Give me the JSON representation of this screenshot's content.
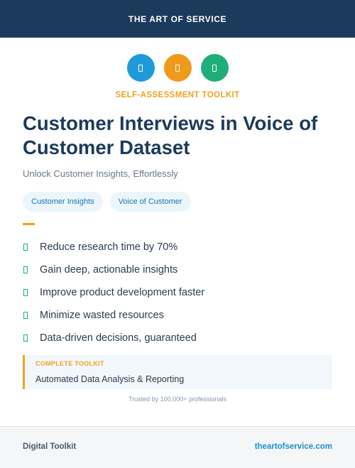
{
  "header": {
    "brand": "THE ART OF SERVICE"
  },
  "icons": [
    {
      "name": "tool-icon",
      "color": "#1e9bd7"
    },
    {
      "name": "chart-icon",
      "color": "#f09a1c"
    },
    {
      "name": "document-icon",
      "color": "#1fae7a"
    }
  ],
  "hero": {
    "kicker": "SELF-ASSESSMENT TOOLKIT",
    "title": "Customer Interviews in Voice of Customer Dataset",
    "subtitle": "Unlock Customer Insights, Effortlessly"
  },
  "tags": [
    "Customer Insights",
    "Voice of Customer"
  ],
  "benefits": [
    "Reduce research time by 70%",
    "Gain deep, actionable insights",
    "Improve product development faster",
    "Minimize wasted resources",
    "Data-driven decisions, guaranteed"
  ],
  "callout": {
    "label": "COMPLETE TOOLKIT",
    "text": "Automated Data Analysis & Reporting"
  },
  "trust": "Trusted by 100,000+ professionals",
  "footer": {
    "left": "Digital Toolkit",
    "right": "theartofservice.com"
  },
  "colors": {
    "navy": "#1c3a5c",
    "accent_orange": "#f0a21e",
    "accent_blue": "#1e9bd7",
    "accent_green": "#1fae7a"
  }
}
